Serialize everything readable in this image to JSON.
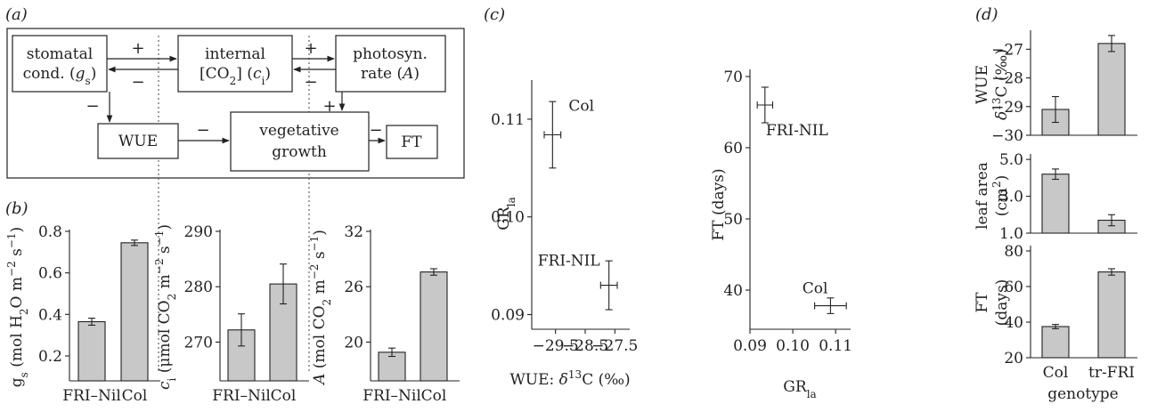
{
  "panel_labels": {
    "a": "(a)",
    "b": "(b)",
    "c": "(c)",
    "d": "(d)"
  },
  "diagram": {
    "nodes": {
      "stomatal": [
        "stomatal",
        "cond. (gs)"
      ],
      "internal": [
        "internal",
        "[CO2] (ci)"
      ],
      "photo": [
        "photosyn.",
        "rate (A)"
      ],
      "wue": "WUE",
      "veg": [
        "vegetative",
        "growth"
      ],
      "ft": "FT"
    },
    "signs": {
      "stom_to_int": "+",
      "int_to_stom": "−",
      "int_to_photo": "+",
      "photo_to_int": "−",
      "stom_to_wue": "−",
      "photo_to_veg": "+",
      "wue_to_veg": "−",
      "veg_to_ft": "−"
    }
  },
  "chart_data": [
    {
      "id": "b-gs",
      "type": "bar",
      "categories": [
        "FRI–Nil",
        "Col"
      ],
      "values": [
        0.365,
        0.745
      ],
      "errors": [
        0.017,
        0.013
      ],
      "ylabel": "gs (mol H2O m−2 s−1)",
      "ylim": [
        0.08,
        0.8
      ],
      "yticks": [
        0.2,
        0.4,
        0.6,
        0.8
      ],
      "ytick_labels": [
        "0.2",
        "0.4",
        "0.6",
        "0.8"
      ],
      "grid": false
    },
    {
      "id": "b-ci",
      "type": "bar",
      "categories": [
        "FRI–Nil",
        "Col"
      ],
      "values": [
        272.2,
        280.5
      ],
      "errors": [
        2.9,
        3.6
      ],
      "ylabel": "ci (μmol CO2 m−2 s−1)",
      "ylim": [
        263.0,
        290
      ],
      "yticks": [
        270,
        280,
        290
      ],
      "ytick_labels": [
        "270",
        "280",
        "290"
      ],
      "grid": false
    },
    {
      "id": "b-A",
      "type": "bar",
      "categories": [
        "FRI–Nil",
        "Col"
      ],
      "values": [
        18.9,
        27.6
      ],
      "errors": [
        0.45,
        0.35
      ],
      "ylabel": "A (mol CO2 m−2 s−1)",
      "ylim": [
        15.8,
        32
      ],
      "yticks": [
        20,
        26,
        32
      ],
      "ytick_labels": [
        "20",
        "26",
        "32"
      ],
      "grid": false
    },
    {
      "id": "c-left",
      "type": "scatter",
      "points": [
        {
          "label": "Col",
          "x": -29.6,
          "y": 0.1084,
          "xerr": 0.28,
          "yerr": 0.0034
        },
        {
          "label": "FRI-NIL",
          "x": -27.7,
          "y": 0.093,
          "xerr": 0.28,
          "yerr": 0.0025
        }
      ],
      "xlabel": "WUE: δ13C (‰)",
      "ylabel": "GRla",
      "xlim": [
        -30.3,
        -27.0
      ],
      "ylim": [
        0.0885,
        0.114
      ],
      "xticks": [
        -29.5,
        -28.5,
        -27.5
      ],
      "xtick_labels": [
        "−29.5",
        "−28.5",
        "−27.5"
      ],
      "yticks": [
        0.09,
        0.1,
        0.11
      ],
      "ytick_labels": [
        "0.09",
        "0.10",
        "0.11"
      ],
      "grid": false
    },
    {
      "id": "c-right",
      "type": "scatter",
      "points": [
        {
          "label": "FRI-NIL",
          "x": 0.0935,
          "y": 66.0,
          "xerr": 0.0018,
          "yerr": 2.5
        },
        {
          "label": "Col",
          "x": 0.1088,
          "y": 37.8,
          "xerr": 0.0037,
          "yerr": 1.1
        }
      ],
      "xlabel": "GRla",
      "ylabel": "FT (days)",
      "xlim": [
        0.09,
        0.1135
      ],
      "ylim": [
        34.5,
        71
      ],
      "xticks": [
        0.09,
        0.1,
        0.11
      ],
      "xtick_labels": [
        "0.09",
        "0.10",
        "0.11"
      ],
      "yticks": [
        40,
        50,
        60,
        70
      ],
      "ytick_labels": [
        "40",
        "50",
        "60",
        "70"
      ],
      "grid": false
    },
    {
      "id": "d-wue",
      "type": "bar",
      "categories": [
        "Col",
        "tr-FRI"
      ],
      "values": [
        -29.1,
        -26.8
      ],
      "errors": [
        0.45,
        0.28
      ],
      "ylabel": "WUE δ13C (‰)",
      "ylim": [
        -30.0,
        -26.4
      ],
      "yticks": [
        -30,
        -29,
        -28,
        -27
      ],
      "ytick_labels": [
        "−30",
        "−29",
        "−28",
        "−27"
      ],
      "grid": false
    },
    {
      "id": "d-leaf",
      "type": "bar",
      "categories": [
        "Col",
        "tr-FRI"
      ],
      "values": [
        4.2,
        1.7
      ],
      "errors": [
        0.28,
        0.3
      ],
      "ylabel": "leaf area (cm2)",
      "ylim": [
        1.0,
        5.2
      ],
      "yticks": [
        1.0,
        3.0,
        5.0
      ],
      "ytick_labels": [
        "1.0",
        "3.0",
        "5.0"
      ],
      "grid": false
    },
    {
      "id": "d-ft",
      "type": "bar",
      "categories": [
        "Col",
        "tr-FRI"
      ],
      "values": [
        37.5,
        68.2
      ],
      "errors": [
        1.2,
        1.8
      ],
      "ylabel": "FT (days)",
      "xlabel": "genotype",
      "ylim": [
        20,
        82
      ],
      "yticks": [
        20,
        40,
        60,
        80
      ],
      "ytick_labels": [
        "20",
        "40",
        "60",
        "80"
      ],
      "grid": false
    }
  ],
  "colors": {
    "bar_fill": "#c8c8c8",
    "stroke": "#222222",
    "background": "#ffffff"
  }
}
